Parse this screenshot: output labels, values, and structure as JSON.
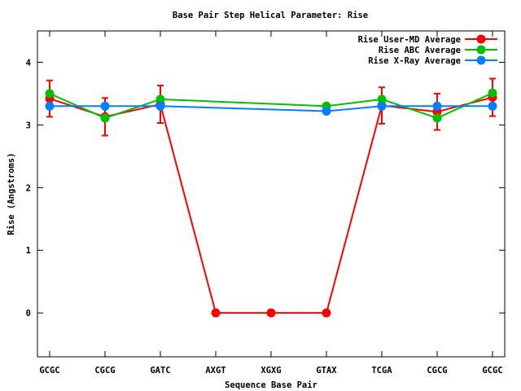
{
  "chart_data": {
    "type": "line",
    "title": "Base Pair Step Helical Parameter: Rise",
    "xlabel": "Sequence Base Pair",
    "ylabel": "Rise (Angstroms)",
    "categories": [
      "GCGC",
      "CGCG",
      "GATC",
      "AXGT",
      "XGXG",
      "GTAX",
      "TCGA",
      "CGCG",
      "GCGC"
    ],
    "ylim": [
      -0.7,
      4.5
    ],
    "yticks": [
      "0",
      "1",
      "2",
      "3",
      "4"
    ],
    "grid": false,
    "legend_position": "top-right",
    "series": [
      {
        "name": "Rise User-MD Average",
        "color": "#ff0000",
        "values": [
          3.42,
          3.13,
          3.33,
          0,
          0,
          0,
          3.31,
          3.21,
          3.44
        ],
        "errors": [
          0.29,
          0.3,
          0.3,
          0,
          0,
          0,
          0.29,
          0.29,
          0.3
        ]
      },
      {
        "name": "Rise ABC Average",
        "color": "#00c000",
        "values": [
          3.5,
          3.11,
          3.41,
          null,
          null,
          3.3,
          3.41,
          3.11,
          3.51
        ]
      },
      {
        "name": "Rise X-Ray Average",
        "color": "#0080ff",
        "values": [
          3.3,
          3.3,
          3.3,
          null,
          null,
          3.22,
          3.3,
          3.3,
          3.3
        ]
      }
    ]
  }
}
